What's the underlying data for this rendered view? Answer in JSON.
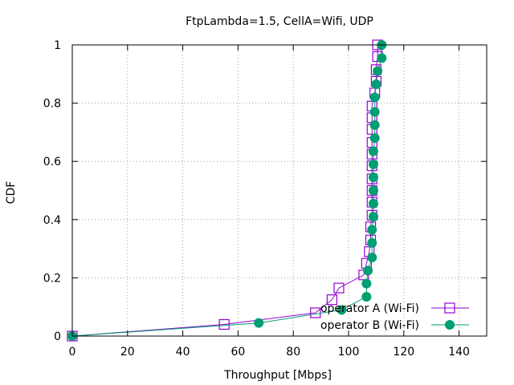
{
  "chart_data": {
    "type": "line",
    "title": "FtpLambda=1.5, CellA=Wifi, UDP",
    "xlabel": "Throughput [Mbps]",
    "ylabel": "CDF",
    "xlim": [
      0,
      150
    ],
    "ylim": [
      0,
      1
    ],
    "xticks": [
      0,
      20,
      40,
      60,
      80,
      100,
      120,
      140
    ],
    "yticks": [
      0,
      0.2,
      0.4,
      0.6,
      0.8,
      1
    ],
    "grid": true,
    "legend_position": "bottom-right",
    "series": [
      {
        "name": "operator A (Wi-Fi)",
        "color": "#9400d3",
        "marker": "open-square",
        "points": [
          [
            0,
            0
          ],
          [
            55,
            0.04
          ],
          [
            88,
            0.08
          ],
          [
            94,
            0.125
          ],
          [
            96.5,
            0.165
          ],
          [
            105.5,
            0.21
          ],
          [
            106.5,
            0.25
          ],
          [
            107.5,
            0.29
          ],
          [
            108,
            0.33
          ],
          [
            108,
            0.375
          ],
          [
            108.5,
            0.415
          ],
          [
            108.5,
            0.46
          ],
          [
            108.5,
            0.5
          ],
          [
            108.5,
            0.54
          ],
          [
            108.5,
            0.585
          ],
          [
            108.5,
            0.625
          ],
          [
            108.5,
            0.665
          ],
          [
            108.5,
            0.71
          ],
          [
            108.5,
            0.75
          ],
          [
            108.5,
            0.79
          ],
          [
            109.5,
            0.835
          ],
          [
            110,
            0.875
          ],
          [
            110,
            0.915
          ],
          [
            110.5,
            0.96
          ],
          [
            110.5,
            1.0
          ]
        ]
      },
      {
        "name": "operator B (Wi-Fi)",
        "color": "#009e73",
        "marker": "filled-circle",
        "points": [
          [
            0,
            0
          ],
          [
            67.5,
            0.045
          ],
          [
            97.5,
            0.09
          ],
          [
            106.5,
            0.135
          ],
          [
            106.5,
            0.18
          ],
          [
            107,
            0.225
          ],
          [
            108.5,
            0.27
          ],
          [
            108.5,
            0.32
          ],
          [
            108.5,
            0.365
          ],
          [
            109,
            0.41
          ],
          [
            109,
            0.455
          ],
          [
            109,
            0.5
          ],
          [
            109,
            0.545
          ],
          [
            109,
            0.59
          ],
          [
            109,
            0.635
          ],
          [
            109.5,
            0.68
          ],
          [
            109.5,
            0.725
          ],
          [
            109.5,
            0.77
          ],
          [
            109.5,
            0.82
          ],
          [
            110,
            0.865
          ],
          [
            110.5,
            0.91
          ],
          [
            112,
            0.955
          ],
          [
            112,
            1.0
          ]
        ]
      }
    ]
  }
}
